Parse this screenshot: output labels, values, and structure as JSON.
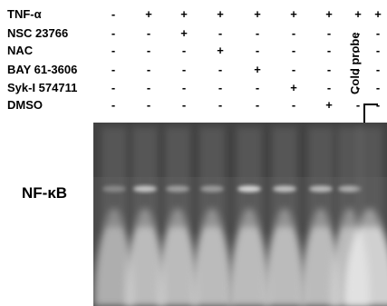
{
  "treatments": [
    {
      "label": "TNF-α",
      "signs": [
        "-",
        "+",
        "+",
        "+",
        "+",
        "+",
        "+",
        "+",
        "+"
      ]
    },
    {
      "label": "NSC 23766",
      "signs": [
        "-",
        "-",
        "+",
        "-",
        "-",
        "-",
        "-",
        "-",
        "-"
      ]
    },
    {
      "label": "NAC",
      "signs": [
        "-",
        "-",
        "-",
        "+",
        "-",
        "-",
        "-",
        "-",
        "-"
      ]
    },
    {
      "label": "BAY 61-3606",
      "signs": [
        "-",
        "-",
        "-",
        "-",
        "+",
        "-",
        "-",
        "-",
        "-"
      ]
    },
    {
      "label": "Syk-I 574711",
      "signs": [
        "-",
        "-",
        "-",
        "-",
        "-",
        "+",
        "-",
        "-",
        "-"
      ]
    },
    {
      "label": "DMSO",
      "signs": [
        "-",
        "-",
        "-",
        "-",
        "-",
        "-",
        "+",
        "-",
        "-"
      ]
    }
  ],
  "cold_probe_label": "Cold probe",
  "cold_probe_arrow": "↓",
  "band_label": "NF-κB",
  "bands": [
    0.05,
    0.55,
    0.22,
    0.2,
    0.7,
    0.5,
    0.45,
    0.35,
    0.0
  ]
}
